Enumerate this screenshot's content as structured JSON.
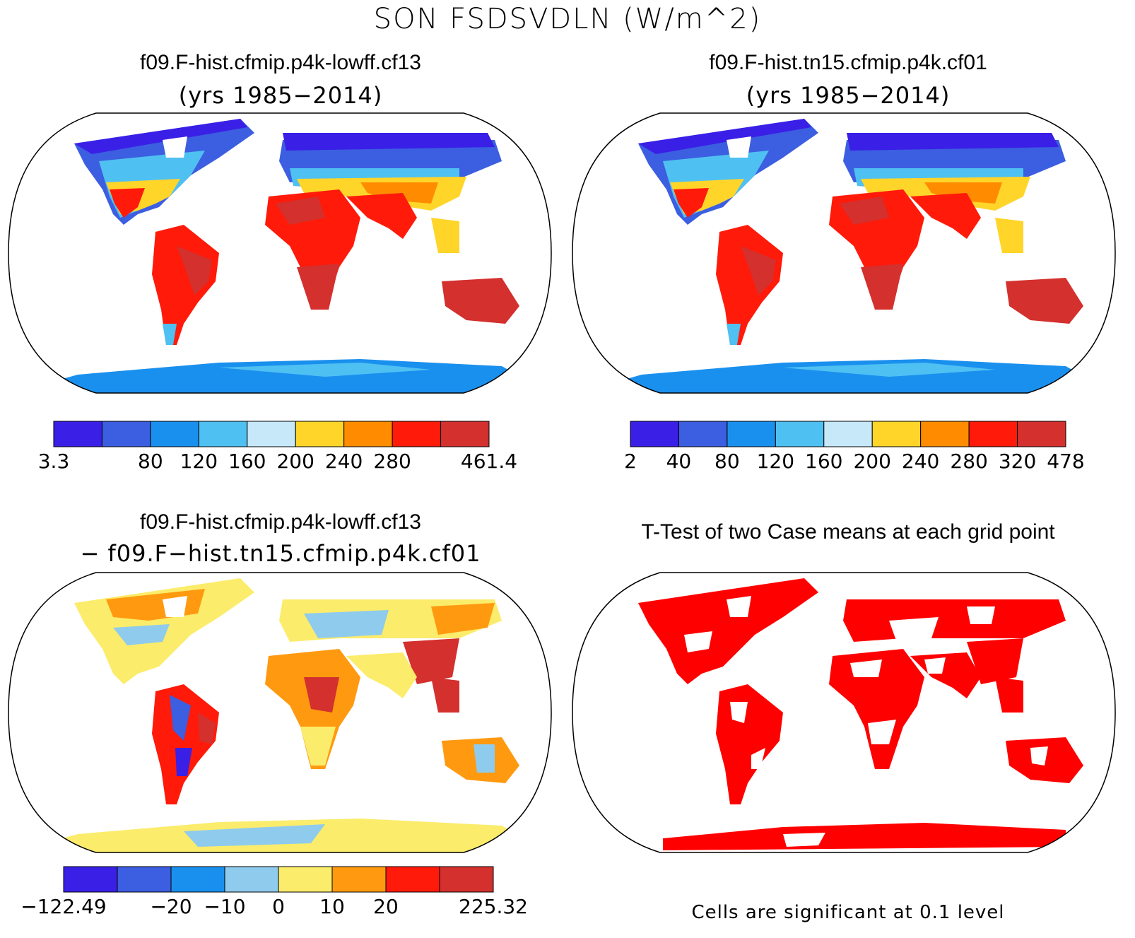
{
  "figure": {
    "title": "SON FSDSVDLN (W/m^2)"
  },
  "panels": [
    {
      "title": "f09.F-hist.cfmip.p4k-lowff.cf13",
      "subtitle": "(yrs 1985−2014)",
      "colorbar": {
        "colors": [
          "#3a1fe6",
          "#3c5ee0",
          "#1a90ee",
          "#4fc0f2",
          "#c6e8f8",
          "#ffd52a",
          "#ff8c00",
          "#ff1a0a",
          "#d3302e"
        ],
        "labels": [
          "3.3",
          "80",
          "120",
          "160",
          "200",
          "240",
          "280",
          "461.4"
        ],
        "label_edges": [
          0,
          2,
          3,
          4,
          5,
          6,
          7,
          9
        ]
      }
    },
    {
      "title": "f09.F-hist.tn15.cfmip.p4k.cf01",
      "subtitle": "(yrs 1985−2014)",
      "colorbar": {
        "colors": [
          "#3a1fe6",
          "#3c5ee0",
          "#1a90ee",
          "#4fc0f2",
          "#c6e8f8",
          "#ffd52a",
          "#ff8c00",
          "#ff1a0a",
          "#d3302e"
        ],
        "labels": [
          "2",
          "40",
          "80",
          "120",
          "160",
          "200",
          "240",
          "280",
          "320",
          "478"
        ],
        "label_edges": [
          0,
          1,
          2,
          3,
          4,
          5,
          6,
          7,
          8,
          9
        ]
      }
    },
    {
      "title": "f09.F-hist.cfmip.p4k-lowff.cf13",
      "subtitle": "− f09.F−hist.tn15.cfmip.p4k.cf01",
      "colorbar": {
        "colors": [
          "#3a1fe6",
          "#3c5ee0",
          "#1a90ee",
          "#8fcbed",
          "#fbec6b",
          "#ff9a10",
          "#ff1a0a",
          "#d3302e"
        ],
        "labels": [
          "−122.49",
          "−20",
          "−10",
          "0",
          "10",
          "20",
          "225.32"
        ],
        "label_edges": [
          0,
          2,
          3,
          4,
          5,
          6,
          8
        ]
      }
    },
    {
      "title": "T-Test of two Case means at each grid point",
      "note": "Cells are significant at 0.1 level",
      "sig_color": "#ff0000"
    }
  ]
}
